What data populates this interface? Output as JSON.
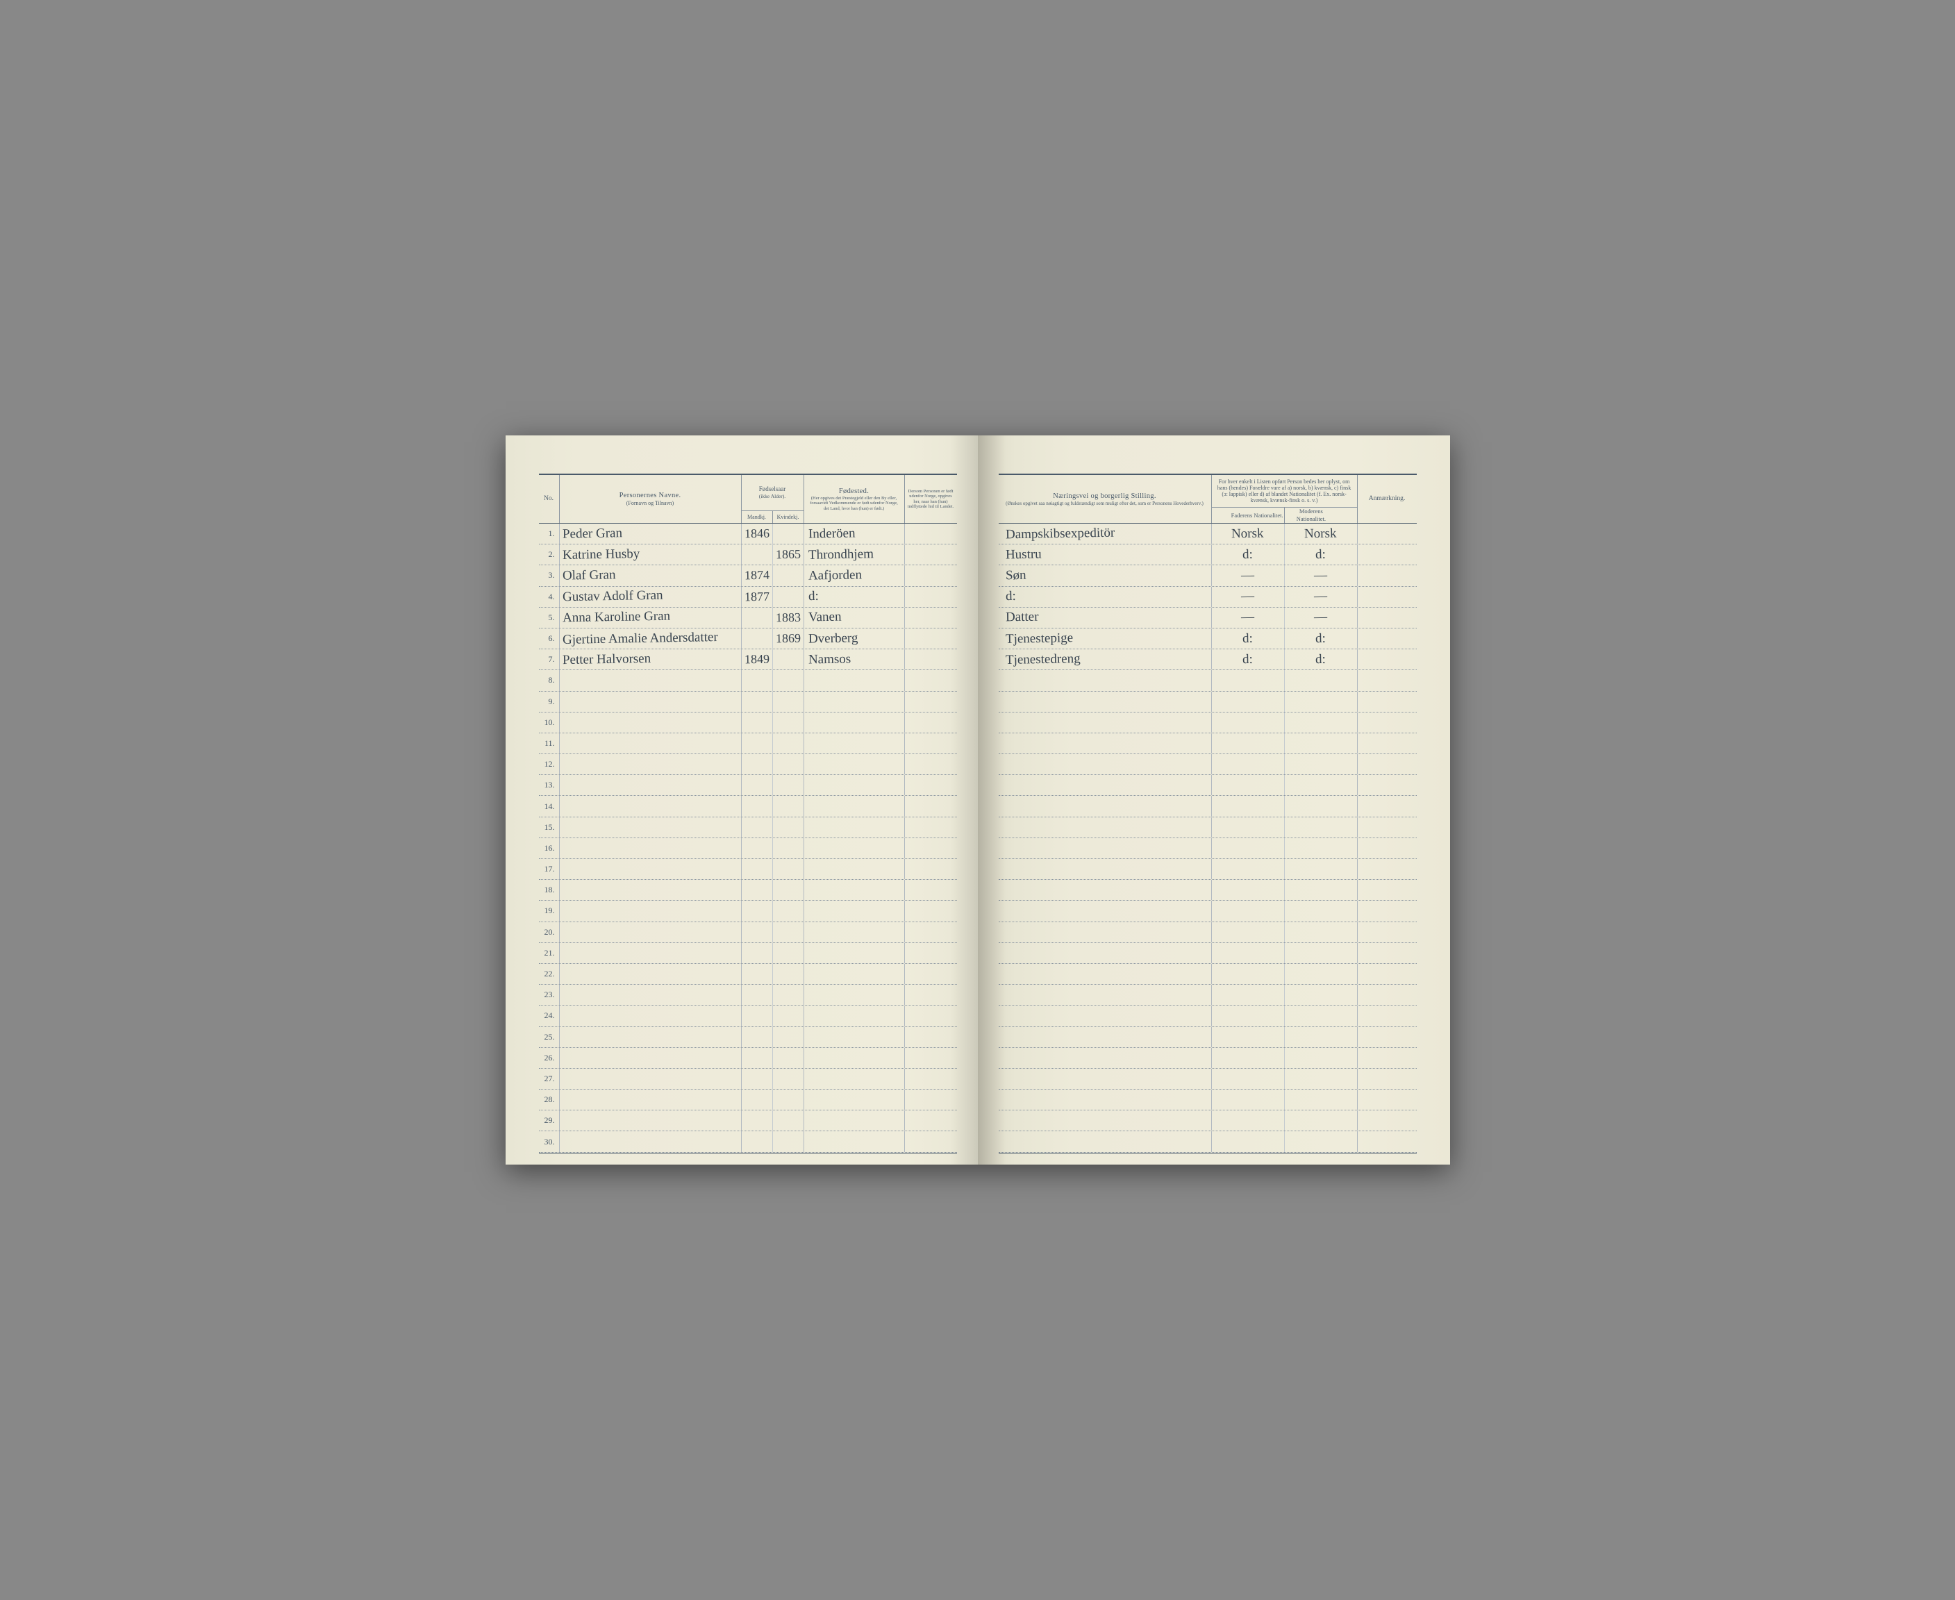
{
  "headers": {
    "no": "No.",
    "name_main": "Personernes Navne.",
    "name_sub": "(Fornavn og Tilnavn)",
    "year_main": "Fødselsaar",
    "year_sub": "(ikke Alder).",
    "year_m": "Mandkj.",
    "year_k": "Kvindekj.",
    "born_main": "Fødested.",
    "born_sub": "(Her opgives det Præstegjeld eller den By eller, forsaavidt Vedkommende er født udenfor Norge, det Land, hvor han (hun) er født.)",
    "outside": "Dersom Personen er født udenfor Norge, opgives her, naar han (hun) indflyttede hid til Landet.",
    "occ_main": "Næringsvei og borgerlig Stilling.",
    "occ_sub": "(Ønskes opgivet saa nøiagtigt og fuldstændigt som muligt efter det, som er Personens Hovederhverv.)",
    "nat_top": "For hver enkelt i Listen opført Person bedes her oplyst, om hans (hendes) Forældre vare af a) norsk, b) kvænsk, c) finsk (ɔ: lappisk) eller d) af blandet Nationalitet (f. Ex. norsk-kvænsk, kvænsk-finsk o. s. v.)",
    "nat_f": "Faderens Nationalitet.",
    "nat_m": "Moderens Nationalitet.",
    "remark": "Anmærkning."
  },
  "rows": [
    {
      "no": "1.",
      "name": "Peder Gran",
      "ym": "1846",
      "yk": "",
      "born": "Inderöen",
      "occ": "Dampskibsexpeditör",
      "natf": "Norsk",
      "natm": "Norsk"
    },
    {
      "no": "2.",
      "name": "Katrine Husby",
      "ym": "",
      "yk": "1865",
      "born": "Throndhjem",
      "occ": "Hustru",
      "natf": "d:",
      "natm": "d:"
    },
    {
      "no": "3.",
      "name": "Olaf Gran",
      "ym": "1874",
      "yk": "",
      "born": "Aafjorden",
      "occ": "Søn",
      "natf": "—",
      "natm": "—"
    },
    {
      "no": "4.",
      "name": "Gustav Adolf Gran",
      "ym": "1877",
      "yk": "",
      "born": "d:",
      "occ": "d:",
      "natf": "—",
      "natm": "—"
    },
    {
      "no": "5.",
      "name": "Anna Karoline Gran",
      "ym": "",
      "yk": "1883",
      "born": "Vanen",
      "occ": "Datter",
      "natf": "—",
      "natm": "—"
    },
    {
      "no": "6.",
      "name": "Gjertine Amalie Andersdatter",
      "ym": "",
      "yk": "1869",
      "born": "Dverberg",
      "occ": "Tjenestepige",
      "natf": "d:",
      "natm": "d:"
    },
    {
      "no": "7.",
      "name": "Petter Halvorsen",
      "ym": "1849",
      "yk": "",
      "born": "Namsos",
      "occ": "Tjenestedreng",
      "natf": "d:",
      "natm": "d:"
    }
  ],
  "row_count": 30,
  "colors": {
    "rule": "#4a5a6a",
    "ink": "#3a4550",
    "paper": "#edead9",
    "background": "#888888"
  }
}
